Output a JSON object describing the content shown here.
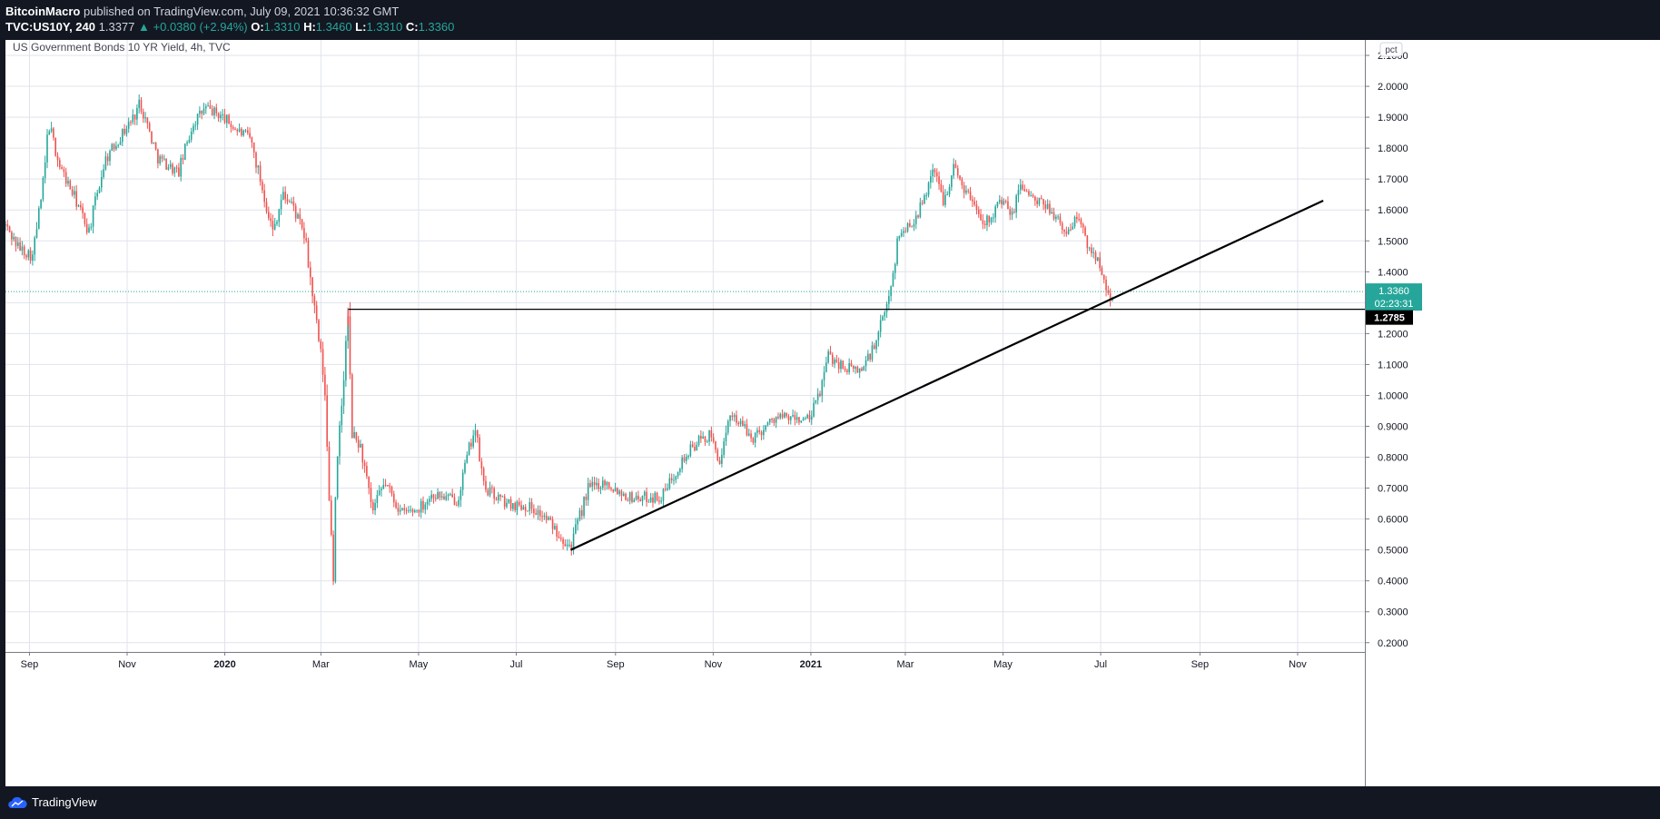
{
  "header": {
    "author": "BitcoinMacro",
    "published_text": "published on TradingView.com, July 09, 2021 10:36:32 GMT",
    "symbol": "TVC:US10Y, 240",
    "last": "1.3377",
    "change": "+0.0380 (+2.94%)",
    "o_label": "O:",
    "o_value": "1.3310",
    "h_label": "H:",
    "h_value": "1.3460",
    "l_label": "L:",
    "l_value": "1.3310",
    "c_label": "C:",
    "c_value": "1.3360"
  },
  "footer": {
    "brand": "TradingView"
  },
  "colors": {
    "up": "#26a69a",
    "down": "#ef5350",
    "grid": "#e0e3eb",
    "bg": "#ffffff",
    "dark": "#131722"
  },
  "chart_data": {
    "type": "candlestick",
    "title": "US Government Bonds 10 YR Yield, 4h, TVC",
    "scale_label": "pct",
    "ylim": [
      0.17,
      2.15
    ],
    "y_ticks": [
      "0.2000",
      "0.3000",
      "0.4000",
      "0.5000",
      "0.6000",
      "0.7000",
      "0.8000",
      "0.9000",
      "1.0000",
      "1.1000",
      "1.2000",
      "1.3000",
      "1.4000",
      "1.5000",
      "1.6000",
      "1.7000",
      "1.8000",
      "1.9000",
      "2.0000",
      "2.1000"
    ],
    "x_ticks": [
      "Sep",
      "Nov",
      "2020",
      "Mar",
      "May",
      "Jul",
      "Sep",
      "Nov",
      "2021",
      "Mar",
      "May",
      "Jul",
      "Sep",
      "Nov"
    ],
    "x_tick_dates": [
      "2019-09-01",
      "2019-11-01",
      "2020-01-01",
      "2020-03-01",
      "2020-05-01",
      "2020-07-01",
      "2020-09-01",
      "2020-11-01",
      "2021-01-01",
      "2021-03-01",
      "2021-05-01",
      "2021-07-01",
      "2021-09-01",
      "2021-11-01"
    ],
    "xlim": [
      "2019-08-17",
      "2021-12-13"
    ],
    "price_path": [
      [
        "2019-08-17",
        1.55
      ],
      [
        "2019-08-25",
        1.48
      ],
      [
        "2019-09-03",
        1.45
      ],
      [
        "2019-09-10",
        1.7
      ],
      [
        "2019-09-13",
        1.88
      ],
      [
        "2019-09-20",
        1.74
      ],
      [
        "2019-10-01",
        1.62
      ],
      [
        "2019-10-08",
        1.53
      ],
      [
        "2019-10-18",
        1.76
      ],
      [
        "2019-10-28",
        1.84
      ],
      [
        "2019-11-05",
        1.9
      ],
      [
        "2019-11-09",
        1.95
      ],
      [
        "2019-11-20",
        1.77
      ],
      [
        "2019-12-03",
        1.72
      ],
      [
        "2019-12-12",
        1.88
      ],
      [
        "2019-12-20",
        1.93
      ],
      [
        "2019-12-31",
        1.9
      ],
      [
        "2020-01-08",
        1.86
      ],
      [
        "2020-01-17",
        1.83
      ],
      [
        "2020-01-31",
        1.53
      ],
      [
        "2020-02-06",
        1.65
      ],
      [
        "2020-02-12",
        1.62
      ],
      [
        "2020-02-20",
        1.51
      ],
      [
        "2020-02-28",
        1.2
      ],
      [
        "2020-03-03",
        1.05
      ],
      [
        "2020-03-06",
        0.7
      ],
      [
        "2020-03-09",
        0.4
      ],
      [
        "2020-03-10",
        0.68
      ],
      [
        "2020-03-18",
        1.26
      ],
      [
        "2020-03-20",
        0.88
      ],
      [
        "2020-03-26",
        0.83
      ],
      [
        "2020-04-02",
        0.62
      ],
      [
        "2020-04-10",
        0.72
      ],
      [
        "2020-04-20",
        0.62
      ],
      [
        "2020-04-30",
        0.63
      ],
      [
        "2020-05-10",
        0.68
      ],
      [
        "2020-05-25",
        0.66
      ],
      [
        "2020-06-05",
        0.9
      ],
      [
        "2020-06-11",
        0.7
      ],
      [
        "2020-06-25",
        0.65
      ],
      [
        "2020-07-10",
        0.64
      ],
      [
        "2020-07-20",
        0.6
      ],
      [
        "2020-08-04",
        0.51
      ],
      [
        "2020-08-15",
        0.7
      ],
      [
        "2020-08-25",
        0.72
      ],
      [
        "2020-09-10",
        0.67
      ],
      [
        "2020-09-30",
        0.67
      ],
      [
        "2020-10-10",
        0.77
      ],
      [
        "2020-10-22",
        0.85
      ],
      [
        "2020-10-30",
        0.87
      ],
      [
        "2020-11-06",
        0.78
      ],
      [
        "2020-11-12",
        0.95
      ],
      [
        "2020-11-25",
        0.86
      ],
      [
        "2020-12-10",
        0.93
      ],
      [
        "2020-12-31",
        0.92
      ],
      [
        "2021-01-06",
        1.0
      ],
      [
        "2021-01-12",
        1.13
      ],
      [
        "2021-01-22",
        1.09
      ],
      [
        "2021-02-01",
        1.08
      ],
      [
        "2021-02-10",
        1.16
      ],
      [
        "2021-02-18",
        1.3
      ],
      [
        "2021-02-25",
        1.52
      ],
      [
        "2021-03-05",
        1.56
      ],
      [
        "2021-03-12",
        1.62
      ],
      [
        "2021-03-18",
        1.74
      ],
      [
        "2021-03-25",
        1.63
      ],
      [
        "2021-03-31",
        1.74
      ],
      [
        "2021-04-07",
        1.67
      ],
      [
        "2021-04-20",
        1.56
      ],
      [
        "2021-04-30",
        1.63
      ],
      [
        "2021-05-07",
        1.58
      ],
      [
        "2021-05-12",
        1.69
      ],
      [
        "2021-05-20",
        1.63
      ],
      [
        "2021-06-01",
        1.6
      ],
      [
        "2021-06-08",
        1.52
      ],
      [
        "2021-06-17",
        1.58
      ],
      [
        "2021-06-23",
        1.48
      ],
      [
        "2021-06-30",
        1.44
      ],
      [
        "2021-07-05",
        1.35
      ],
      [
        "2021-07-08",
        1.29
      ],
      [
        "2021-07-09",
        1.336
      ]
    ],
    "current_price": "1.3360",
    "countdown": "02:23:31",
    "level_label": "1.2785",
    "horizontal_line": {
      "from": "2020-03-18",
      "to": "2021-12-13",
      "y": 1.2785
    },
    "trend_line": {
      "from": [
        "2020-08-04",
        0.5
      ],
      "to": [
        "2021-11-17",
        1.63
      ]
    }
  }
}
